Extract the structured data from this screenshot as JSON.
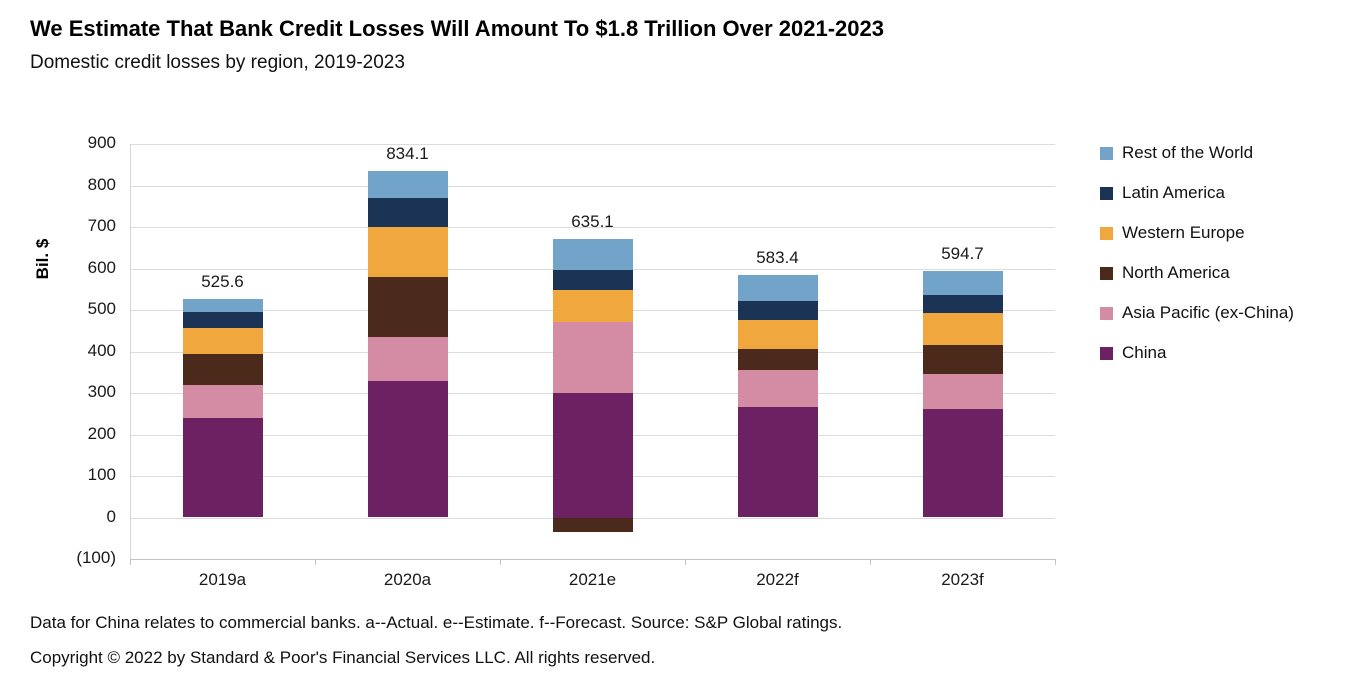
{
  "header": {
    "title": "We Estimate That Bank Credit Losses Will Amount To $1.8 Trillion Over 2021-2023",
    "subtitle": "Domestic credit losses by region, 2019-2023"
  },
  "chart_data": {
    "type": "bar",
    "stacked": true,
    "title": "We Estimate That Bank Credit Losses Will Amount To $1.8 Trillion Over 2021-2023",
    "subtitle": "Domestic credit losses by region, 2019-2023",
    "ylabel": "Bil. $",
    "xlabel": "",
    "categories": [
      "2019a",
      "2020a",
      "2021e",
      "2022f",
      "2023f"
    ],
    "series": [
      {
        "name": "China",
        "color": "#6C2163",
        "values": [
          240.0,
          330.0,
          300.0,
          266.0,
          261.7
        ]
      },
      {
        "name": "Asia Pacific (ex-China)",
        "color": "#D38CA4",
        "values": [
          80.0,
          105.0,
          170.0,
          90.0,
          85.0
        ]
      },
      {
        "name": "North America",
        "color": "#4C2A1B",
        "values": [
          75.0,
          145.0,
          -36.0,
          50.0,
          70.0
        ]
      },
      {
        "name": "Western Europe",
        "color": "#F0A83E",
        "values": [
          62.0,
          120.0,
          78.0,
          70.0,
          75.0
        ]
      },
      {
        "name": "Latin America",
        "color": "#1B3455",
        "values": [
          38.0,
          70.0,
          48.1,
          45.0,
          45.0
        ]
      },
      {
        "name": "Rest of the World",
        "color": "#72A3C9",
        "values": [
          30.6,
          64.1,
          75.0,
          62.4,
          58.0
        ]
      }
    ],
    "totals": [
      525.6,
      834.1,
      635.1,
      583.4,
      594.7
    ],
    "ylim": [
      -100,
      900
    ],
    "ytick_step": 100,
    "grid": true,
    "legend_position": "right",
    "legend_order": [
      "Rest of the World",
      "Latin America",
      "Western Europe",
      "North America",
      "Asia Pacific (ex-China)",
      "China"
    ]
  },
  "footer": {
    "note": "Data for China relates to commercial banks. a--Actual. e--Estimate. f--Forecast. Source: S&P Global ratings.",
    "copyright": "Copyright © 2022 by Standard & Poor's Financial Services LLC. All rights reserved."
  }
}
